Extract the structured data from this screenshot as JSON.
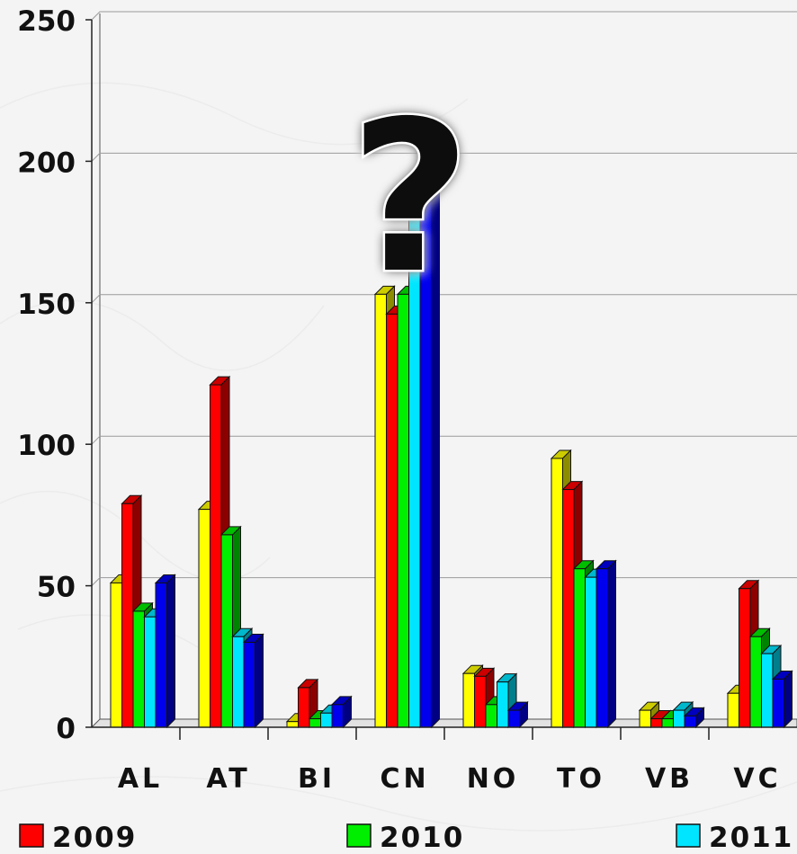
{
  "chart_data": {
    "type": "bar",
    "categories": [
      "AL",
      "AT",
      "BI",
      "CN",
      "NO",
      "TO",
      "VB",
      "VC"
    ],
    "series": [
      {
        "name": "",
        "color": "#ffff00",
        "values": [
          51,
          77,
          2,
          153,
          19,
          95,
          6,
          12
        ]
      },
      {
        "name": "2009",
        "color": "#ff0000",
        "values": [
          79,
          121,
          14,
          146,
          18,
          84,
          3,
          49
        ]
      },
      {
        "name": "2010",
        "color": "#00ee00",
        "values": [
          41,
          68,
          3,
          153,
          8,
          56,
          3,
          32
        ]
      },
      {
        "name": "2011",
        "color": "#00e5ff",
        "values": [
          39,
          32,
          5,
          180,
          16,
          53,
          6,
          26
        ]
      },
      {
        "name": "",
        "color": "#0000ee",
        "values": [
          51,
          30,
          8,
          210,
          6,
          56,
          4,
          17
        ]
      }
    ],
    "ylim": [
      0,
      250
    ],
    "yticks": [
      "0",
      "50",
      "100",
      "150",
      "200",
      "250"
    ],
    "grid": true,
    "legend_position": "bottom",
    "annotation": "?"
  }
}
